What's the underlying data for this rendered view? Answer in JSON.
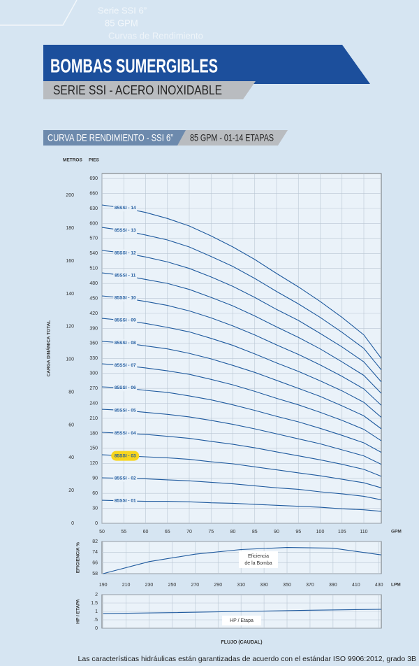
{
  "watermark": [
    "Serie SSI 6”",
    "85 GPM",
    "Curvas de Rendimiento"
  ],
  "title": "BOMBAS SUMERGIBLES",
  "subtitle": "SERIE SSI - ACERO INOXIDABLE",
  "section": {
    "left": "CURVA DE RENDIMIENTO - SSI 6”",
    "right": "85 GPM - 01-14 ETAPAS"
  },
  "footnote": "Las características hidráulicas están garantizadas de acuerdo con el estándar ISO 9906:2012, grado 3B",
  "chart_data": [
    {
      "type": "line",
      "y_label": "CARGA DINÁMICA TOTAL",
      "y_unit": "PIES",
      "y2_unit": "METROS",
      "x_unit": "GPM",
      "grid": true,
      "xlim": [
        50,
        114
      ],
      "xticks": [
        50,
        55,
        60,
        65,
        70,
        75,
        80,
        85,
        90,
        95,
        100,
        105,
        110
      ],
      "ylim": [
        0,
        700
      ],
      "yticks": [
        0,
        30,
        60,
        90,
        120,
        150,
        180,
        210,
        240,
        270,
        300,
        330,
        360,
        390,
        420,
        450,
        480,
        510,
        540,
        570,
        600,
        630,
        660,
        690
      ],
      "y2lim": [
        0,
        213.4
      ],
      "y2ticks": [
        0,
        20,
        40,
        60,
        80,
        100,
        120,
        140,
        160,
        180,
        200
      ],
      "x": [
        50,
        55,
        60,
        65,
        70,
        75,
        80,
        85,
        90,
        95,
        100,
        105,
        110,
        114
      ],
      "series": [
        {
          "name": "85SSI - 01",
          "color": "#1f5a9e",
          "values": [
            46,
            45,
            44,
            44,
            43,
            41,
            40,
            38,
            36,
            34,
            32,
            29,
            27,
            24
          ]
        },
        {
          "name": "85SSI - 02",
          "color": "#1f5a9e",
          "values": [
            91,
            90,
            89,
            87,
            85,
            82,
            79,
            75,
            71,
            68,
            63,
            59,
            54,
            47
          ]
        },
        {
          "name": "85SSI - 03",
          "color": "#1f5a9e",
          "highlight": "#f7d51e",
          "values": [
            137,
            135,
            133,
            131,
            128,
            123,
            119,
            113,
            107,
            101,
            95,
            88,
            81,
            71
          ]
        },
        {
          "name": "85SSI - 04",
          "color": "#1f5a9e",
          "values": [
            182,
            180,
            178,
            174,
            170,
            164,
            158,
            151,
            143,
            135,
            127,
            118,
            108,
            94
          ]
        },
        {
          "name": "85SSI - 05",
          "color": "#1f5a9e",
          "values": [
            228,
            226,
            222,
            218,
            213,
            206,
            198,
            189,
            179,
            169,
            159,
            147,
            135,
            118
          ]
        },
        {
          "name": "85SSI - 06",
          "color": "#1f5a9e",
          "values": [
            273,
            271,
            266,
            262,
            255,
            247,
            237,
            226,
            214,
            203,
            190,
            176,
            161,
            142
          ]
        },
        {
          "name": "85SSI - 07",
          "color": "#1f5a9e",
          "values": [
            319,
            316,
            311,
            305,
            298,
            288,
            277,
            264,
            250,
            237,
            222,
            206,
            188,
            165
          ]
        },
        {
          "name": "85SSI - 08",
          "color": "#1f5a9e",
          "values": [
            364,
            361,
            355,
            349,
            340,
            329,
            316,
            302,
            286,
            270,
            254,
            235,
            215,
            189
          ]
        },
        {
          "name": "85SSI - 09",
          "color": "#1f5a9e",
          "values": [
            410,
            406,
            400,
            392,
            383,
            370,
            356,
            339,
            321,
            304,
            285,
            265,
            242,
            212
          ]
        },
        {
          "name": "85SSI - 10",
          "color": "#1f5a9e",
          "values": [
            455,
            451,
            444,
            436,
            425,
            411,
            395,
            377,
            357,
            338,
            317,
            294,
            269,
            236
          ]
        },
        {
          "name": "85SSI - 11",
          "color": "#1f5a9e",
          "values": [
            501,
            496,
            488,
            480,
            468,
            452,
            435,
            415,
            393,
            372,
            349,
            323,
            296,
            260
          ]
        },
        {
          "name": "85SSI - 12",
          "color": "#1f5a9e",
          "values": [
            546,
            541,
            533,
            523,
            510,
            493,
            474,
            452,
            428,
            406,
            380,
            353,
            323,
            283
          ]
        },
        {
          "name": "85SSI - 13",
          "color": "#1f5a9e",
          "values": [
            592,
            586,
            577,
            567,
            553,
            534,
            514,
            490,
            464,
            439,
            412,
            382,
            350,
            307
          ]
        },
        {
          "name": "85SSI - 14",
          "color": "#1f5a9e",
          "values": [
            637,
            631,
            622,
            610,
            595,
            575,
            553,
            528,
            500,
            473,
            444,
            412,
            377,
            330
          ]
        }
      ]
    },
    {
      "type": "line",
      "y_label": "EFICIENCIA %",
      "x_unit": "LPM",
      "grid": true,
      "annotation": [
        "Eficiencia",
        "de la Bomba"
      ],
      "xlim": [
        189,
        432
      ],
      "xticks": [
        190,
        210,
        230,
        250,
        270,
        290,
        310,
        330,
        350,
        370,
        390,
        410,
        430
      ],
      "ylim": [
        58,
        82
      ],
      "yticks": [
        58,
        66,
        74,
        82
      ],
      "x": [
        190,
        230,
        270,
        310,
        350,
        390,
        432
      ],
      "series": [
        {
          "color": "#1f5a9e",
          "values": [
            58,
            67,
            72.5,
            76,
            77.5,
            77,
            72
          ]
        }
      ]
    },
    {
      "type": "line",
      "y_label": "HP / ETAPA",
      "x_label": "FLUJO (CAUDAL)",
      "grid": true,
      "annotation": [
        "HP / Etapa"
      ],
      "xlim": [
        189,
        432
      ],
      "xticks": [
        190,
        210,
        230,
        250,
        270,
        290,
        310,
        330,
        350,
        370,
        390,
        410,
        430
      ],
      "ylim": [
        0,
        2
      ],
      "yticks": [
        0,
        {
          "value": 0.5,
          "label": ".5"
        },
        1,
        1.5,
        2
      ],
      "x": [
        190,
        250,
        310,
        370,
        432
      ],
      "series": [
        {
          "color": "#1f5a9e",
          "values": [
            0.87,
            0.93,
            1,
            1.07,
            1.13
          ]
        }
      ]
    }
  ]
}
